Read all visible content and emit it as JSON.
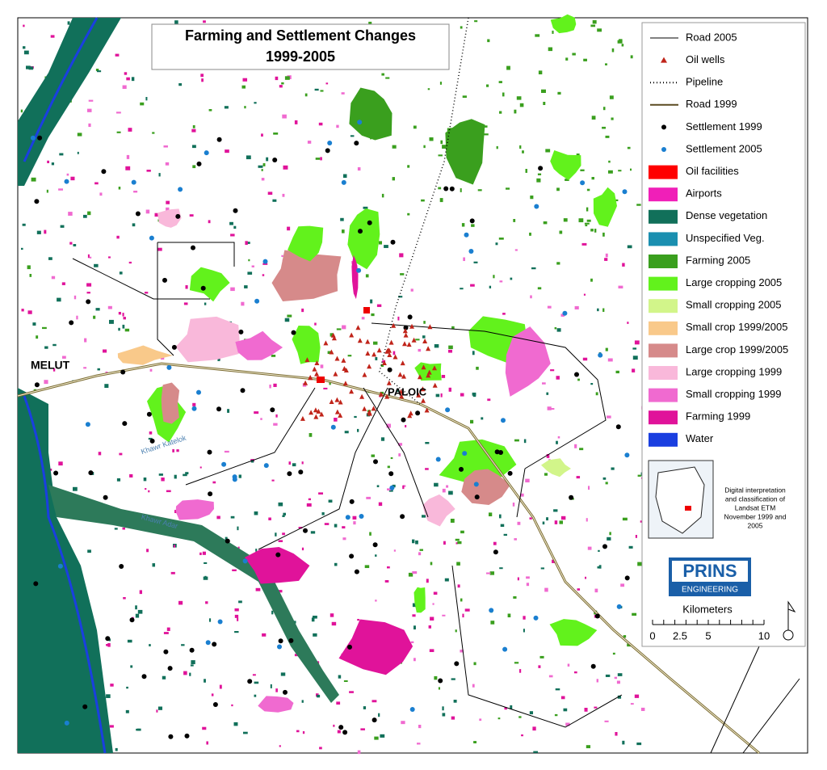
{
  "title": {
    "line1": "Farming and Settlement Changes",
    "line2": "1999-2005"
  },
  "places": {
    "melut": "MELUT",
    "paloic": "PALOIC",
    "river1": "Khawr Katelok",
    "river2": "Khawr Adar"
  },
  "legend": [
    "Road 2005",
    "Oil wells",
    "Pipeline",
    "Road 1999",
    "Settlement 1999",
    "Settlement 2005",
    "Oil facilities",
    "Airports",
    "Dense vegetation",
    "Unspecified Veg.",
    "Farming 2005",
    "Large cropping 2005",
    "Small cropping 2005",
    "Small crop 1999/2005",
    "Large crop 1999/2005",
    "Large cropping 1999",
    "Small cropping 1999",
    "Farming 1999",
    "Water"
  ],
  "inset_note": [
    "Digital interpretation",
    "and classification of",
    "Landsat ETM",
    "November 1999 and",
    "2005"
  ],
  "logo": {
    "name": "PRINS",
    "sub": "ENGINEERING"
  },
  "scale": {
    "unit": "Kilometers",
    "labels": [
      "0",
      "2.5",
      "5",
      "10"
    ]
  }
}
